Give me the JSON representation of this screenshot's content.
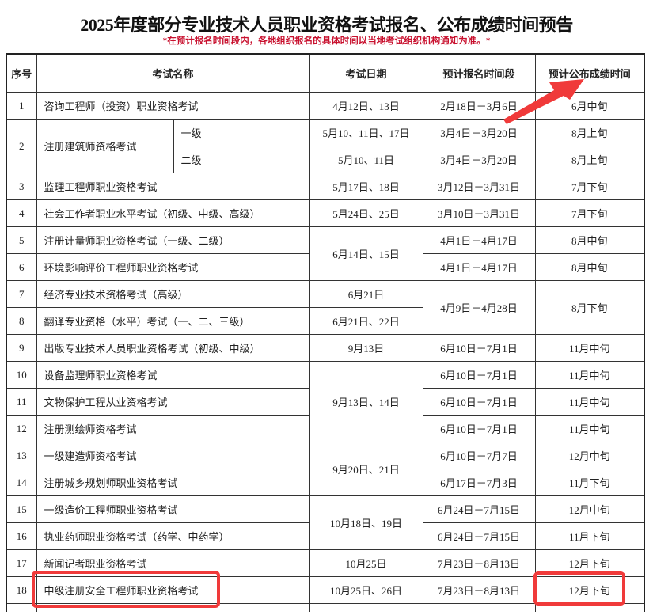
{
  "title": "2025年度部分专业技术人员职业资格考试报名、公布成绩时间预告",
  "note": "*在预计报名时间段内，各地组织报名的具体时间以当地考试组织机构通知为准。*",
  "colors": {
    "note": "#c8102e",
    "highlight": "#f03a3a"
  },
  "table": {
    "headers": [
      "序号",
      "考试名称",
      "考试日期",
      "预计报名时间段",
      "预计公布成绩时间"
    ],
    "rows": [
      [
        {
          "k": "no",
          "t": "1"
        },
        {
          "k": "name",
          "t": "咨询工程师（投资）职业资格考试",
          "cs": 2
        },
        {
          "k": "date",
          "t": "4月12日、13日"
        },
        {
          "k": "reg",
          "t": "2月18日－3月6日"
        },
        {
          "k": "result",
          "t": "6月中旬"
        }
      ],
      [
        {
          "k": "no",
          "t": "2",
          "rs": 2
        },
        {
          "k": "name",
          "t": "注册建筑师资格考试",
          "rs": 2
        },
        {
          "k": "level",
          "t": "一级"
        },
        {
          "k": "date",
          "t": "5月10、11日、17日"
        },
        {
          "k": "reg",
          "t": "3月4日－3月20日"
        },
        {
          "k": "result",
          "t": "8月上旬"
        }
      ],
      [
        {
          "k": "level",
          "t": "二级"
        },
        {
          "k": "date",
          "t": "5月10、11日"
        },
        {
          "k": "reg",
          "t": "3月4日－3月20日"
        },
        {
          "k": "result",
          "t": "8月上旬"
        }
      ],
      [
        {
          "k": "no",
          "t": "3"
        },
        {
          "k": "name",
          "t": "监理工程师职业资格考试",
          "cs": 2
        },
        {
          "k": "date",
          "t": "5月17日、18日"
        },
        {
          "k": "reg",
          "t": "3月12日－3月31日"
        },
        {
          "k": "result",
          "t": "7月下旬"
        }
      ],
      [
        {
          "k": "no",
          "t": "4"
        },
        {
          "k": "name",
          "t": "社会工作者职业水平考试（初级、中级、高级）",
          "cs": 2
        },
        {
          "k": "date",
          "t": "5月24日、25日"
        },
        {
          "k": "reg",
          "t": "3月10日－3月31日"
        },
        {
          "k": "result",
          "t": "7月下旬"
        }
      ],
      [
        {
          "k": "no",
          "t": "5"
        },
        {
          "k": "name",
          "t": "注册计量师职业资格考试（一级、二级）",
          "cs": 2
        },
        {
          "k": "date",
          "t": "6月14日、15日",
          "rs": 2
        },
        {
          "k": "reg",
          "t": "4月1日－4月17日"
        },
        {
          "k": "result",
          "t": "8月中旬"
        }
      ],
      [
        {
          "k": "no",
          "t": "6"
        },
        {
          "k": "name",
          "t": "环境影响评价工程师职业资格考试",
          "cs": 2
        },
        {
          "k": "reg",
          "t": "4月1日－4月17日"
        },
        {
          "k": "result",
          "t": "8月中旬"
        }
      ],
      [
        {
          "k": "no",
          "t": "7"
        },
        {
          "k": "name",
          "t": "经济专业技术资格考试（高级）",
          "cs": 2
        },
        {
          "k": "date",
          "t": "6月21日"
        },
        {
          "k": "reg",
          "t": "4月9日－4月28日",
          "rs": 2
        },
        {
          "k": "result",
          "t": "8月下旬",
          "rs": 2
        }
      ],
      [
        {
          "k": "no",
          "t": "8"
        },
        {
          "k": "name",
          "t": "翻译专业资格（水平）考试（一、二、三级）",
          "cs": 2
        },
        {
          "k": "date",
          "t": "6月21日、22日"
        }
      ],
      [
        {
          "k": "no",
          "t": "9"
        },
        {
          "k": "name",
          "t": "出版专业技术人员职业资格考试（初级、中级）",
          "cs": 2
        },
        {
          "k": "date",
          "t": "9月13日"
        },
        {
          "k": "reg",
          "t": "6月10日－7月1日"
        },
        {
          "k": "result",
          "t": "11月中旬"
        }
      ],
      [
        {
          "k": "no",
          "t": "10"
        },
        {
          "k": "name",
          "t": "设备监理师职业资格考试",
          "cs": 2
        },
        {
          "k": "date",
          "t": "9月13日、14日",
          "rs": 3
        },
        {
          "k": "reg",
          "t": "6月10日－7月1日"
        },
        {
          "k": "result",
          "t": "11月中旬"
        }
      ],
      [
        {
          "k": "no",
          "t": "11"
        },
        {
          "k": "name",
          "t": "文物保护工程从业资格考试",
          "cs": 2
        },
        {
          "k": "reg",
          "t": "6月10日－7月1日"
        },
        {
          "k": "result",
          "t": "11月中旬"
        }
      ],
      [
        {
          "k": "no",
          "t": "12"
        },
        {
          "k": "name",
          "t": "注册测绘师资格考试",
          "cs": 2
        },
        {
          "k": "reg",
          "t": "6月10日－7月1日"
        },
        {
          "k": "result",
          "t": "11月中旬"
        }
      ],
      [
        {
          "k": "no",
          "t": "13"
        },
        {
          "k": "name",
          "t": "一级建造师资格考试",
          "cs": 2
        },
        {
          "k": "date",
          "t": "9月20日、21日",
          "rs": 2
        },
        {
          "k": "reg",
          "t": "6月10日－7月7日"
        },
        {
          "k": "result",
          "t": "12月中旬"
        }
      ],
      [
        {
          "k": "no",
          "t": "14"
        },
        {
          "k": "name",
          "t": "注册城乡规划师职业资格考试",
          "cs": 2
        },
        {
          "k": "reg",
          "t": "6月17日－7月3日"
        },
        {
          "k": "result",
          "t": "11月下旬"
        }
      ],
      [
        {
          "k": "no",
          "t": "15"
        },
        {
          "k": "name",
          "t": "一级造价工程师职业资格考试",
          "cs": 2
        },
        {
          "k": "date",
          "t": "10月18日、19日",
          "rs": 2
        },
        {
          "k": "reg",
          "t": "6月24日－7月15日"
        },
        {
          "k": "result",
          "t": "12月中旬"
        }
      ],
      [
        {
          "k": "no",
          "t": "16"
        },
        {
          "k": "name",
          "t": "执业药师职业资格考试（药学、中药学）",
          "cs": 2
        },
        {
          "k": "reg",
          "t": "6月24日－7月15日"
        },
        {
          "k": "result",
          "t": "11月下旬"
        }
      ],
      [
        {
          "k": "no",
          "t": "17"
        },
        {
          "k": "name",
          "t": "新闻记者职业资格考试",
          "cs": 2
        },
        {
          "k": "date",
          "t": "10月25日"
        },
        {
          "k": "reg",
          "t": "7月23日－8月13日"
        },
        {
          "k": "result",
          "t": "12月下旬"
        }
      ],
      [
        {
          "k": "no",
          "t": "18"
        },
        {
          "k": "name",
          "t": "中级注册安全工程师职业资格考试",
          "cs": 2
        },
        {
          "k": "date",
          "t": "10月25日、26日"
        },
        {
          "k": "reg",
          "t": "7月23日－8月13日"
        },
        {
          "k": "result",
          "t": "12月下旬"
        }
      ]
    ]
  }
}
